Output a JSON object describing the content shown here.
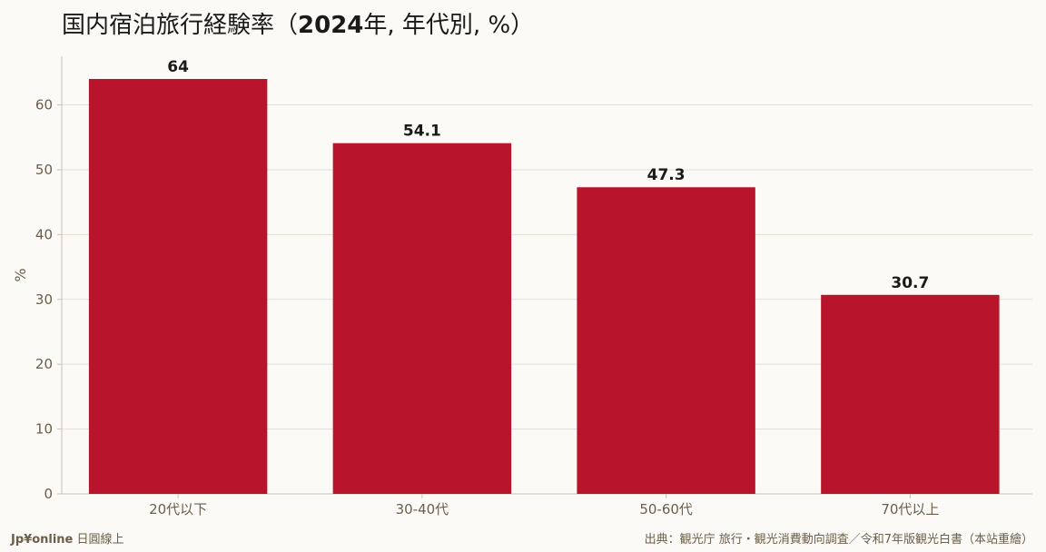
{
  "header": {
    "title_prefix": "国内宿泊旅行経験率（",
    "title_year": "2024",
    "title_suffix": "年, 年代別, %）"
  },
  "footer": {
    "brand": "Jp¥online",
    "brand_sub": "日圓線上",
    "source": "出典：観光庁 旅行・観光消費動向調査／令和7年版観光白書（本站重繪）"
  },
  "colors": {
    "bar": "#b8152d",
    "grid": "#e3dfd4",
    "axis_text": "#6b5e4b"
  },
  "chart_data": {
    "type": "bar",
    "categories": [
      "20代以下",
      "30-40代",
      "50-60代",
      "70代以上"
    ],
    "values": [
      64,
      54.1,
      47.3,
      30.7
    ],
    "value_labels": [
      "64",
      "54.1",
      "47.3",
      "30.7"
    ],
    "ylabel": "%",
    "ylim": [
      0,
      67.5
    ],
    "yticks": [
      0,
      10,
      20,
      30,
      40,
      50,
      60
    ],
    "grid": true
  }
}
